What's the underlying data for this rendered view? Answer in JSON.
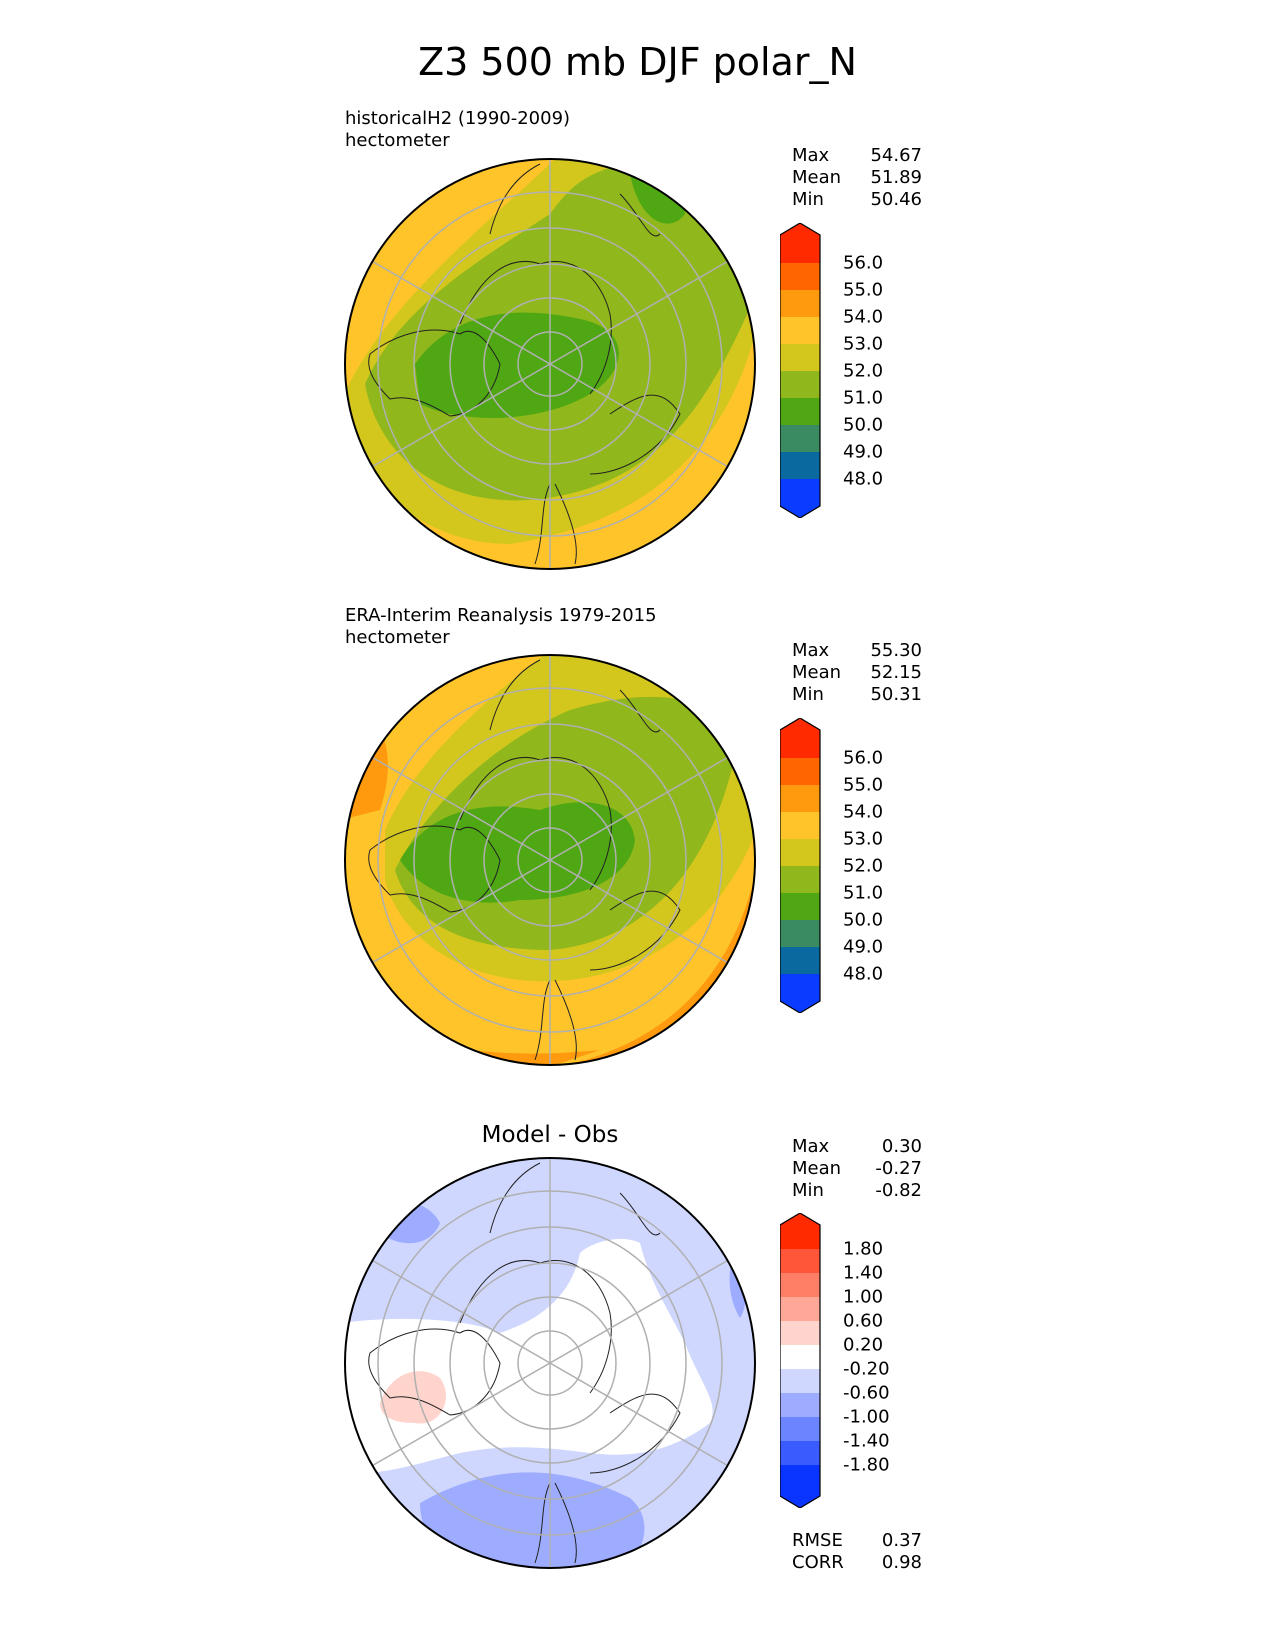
{
  "title": "Z3 500 mb DJF polar_N",
  "panels": [
    {
      "label_line1": "historicalH2 (1990-2009)",
      "label_line2": "hectometer",
      "stats": [
        {
          "name": "Max",
          "value": "54.67"
        },
        {
          "name": "Mean",
          "value": "51.89"
        },
        {
          "name": "Min",
          "value": "50.46"
        }
      ],
      "colorbar_ticks": [
        "56.0",
        "55.0",
        "54.0",
        "53.0",
        "52.0",
        "51.0",
        "50.0",
        "49.0",
        "48.0"
      ]
    },
    {
      "label_line1": "ERA-Interim Reanalysis 1979-2015",
      "label_line2": "hectometer",
      "stats": [
        {
          "name": "Max",
          "value": "55.30"
        },
        {
          "name": "Mean",
          "value": "52.15"
        },
        {
          "name": "Min",
          "value": "50.31"
        }
      ],
      "colorbar_ticks": [
        "56.0",
        "55.0",
        "54.0",
        "53.0",
        "52.0",
        "51.0",
        "50.0",
        "49.0",
        "48.0"
      ]
    },
    {
      "heading": "Model - Obs",
      "stats": [
        {
          "name": "Max",
          "value": "0.30"
        },
        {
          "name": "Mean",
          "value": "-0.27"
        },
        {
          "name": "Min",
          "value": "-0.82"
        }
      ],
      "colorbar_ticks": [
        "1.80",
        "1.40",
        "1.00",
        "0.60",
        "0.20",
        "-0.20",
        "-0.60",
        "-1.00",
        "-1.40",
        "-1.80"
      ],
      "metrics": [
        {
          "name": "RMSE",
          "value": "0.37"
        },
        {
          "name": "CORR",
          "value": "0.98"
        }
      ]
    }
  ],
  "colors": {
    "height_levels": [
      "#ff2a00",
      "#ff6600",
      "#ff9a0e",
      "#fec42a",
      "#d3c71e",
      "#90b71b",
      "#4ea713",
      "#3a8a62",
      "#0a6aa0",
      "#0a3cff"
    ],
    "diff_levels": [
      "#ff2a00",
      "#ff5538",
      "#ff7f66",
      "#ffa898",
      "#ffd4cc",
      "#ffffff",
      "#cfd7ff",
      "#9dacff",
      "#6b84ff",
      "#3a5cff",
      "#0a34ff"
    ]
  }
}
